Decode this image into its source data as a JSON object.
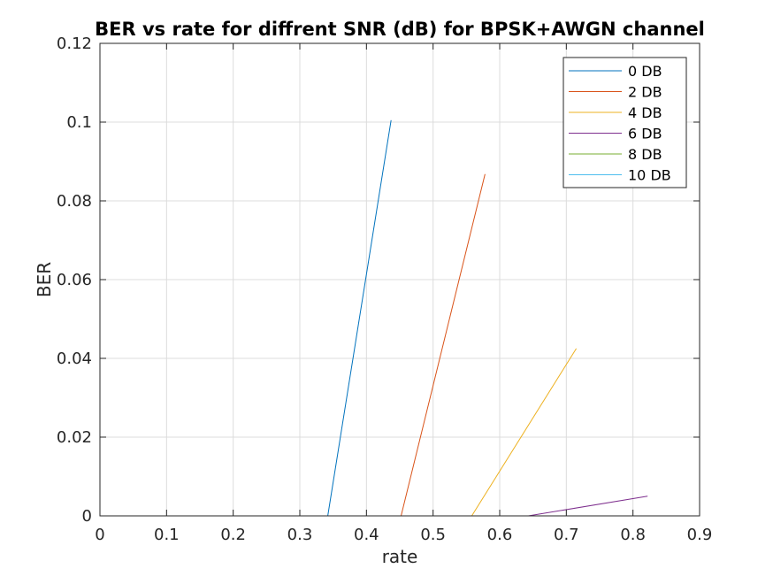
{
  "chart_data": {
    "type": "line",
    "title": "BER vs rate for diffrent SNR (dB) for BPSK+AWGN channel",
    "xlabel": "rate",
    "ylabel": "BER",
    "xlim": [
      0,
      0.9
    ],
    "ylim": [
      0,
      0.12
    ],
    "xticks": [
      0,
      0.1,
      0.2,
      0.3,
      0.4,
      0.5,
      0.6,
      0.7,
      0.8,
      0.9
    ],
    "xtick_labels": [
      "0",
      "0.1",
      "0.2",
      "0.3",
      "0.4",
      "0.5",
      "0.6",
      "0.7",
      "0.8",
      "0.9"
    ],
    "yticks": [
      0,
      0.02,
      0.04,
      0.06,
      0.08,
      0.1,
      0.12
    ],
    "ytick_labels": [
      "0",
      "0.02",
      "0.04",
      "0.06",
      "0.08",
      "0.1",
      "0.12"
    ],
    "grid": true,
    "legend_position": "top-right",
    "series": [
      {
        "name": "0 DB",
        "color": "#0072BD",
        "x": [
          0,
          0.342,
          0.437
        ],
        "y": [
          0,
          0,
          0.1005
        ]
      },
      {
        "name": "2 DB",
        "color": "#D95319",
        "x": [
          0,
          0.452,
          0.578
        ],
        "y": [
          0,
          0,
          0.0868
        ]
      },
      {
        "name": "4 DB",
        "color": "#EDB120",
        "x": [
          0,
          0.558,
          0.715
        ],
        "y": [
          0,
          0,
          0.0425
        ]
      },
      {
        "name": "6 DB",
        "color": "#7E2F8E",
        "x": [
          0,
          0.643,
          0.822
        ],
        "y": [
          0,
          0,
          0.005
        ]
      },
      {
        "name": "8 DB",
        "color": "#77AC30",
        "x": [
          0,
          0.9
        ],
        "y": [
          0,
          0
        ]
      },
      {
        "name": "10 DB",
        "color": "#4DBEEE",
        "x": [
          0,
          0.9
        ],
        "y": [
          0,
          0
        ]
      }
    ]
  }
}
